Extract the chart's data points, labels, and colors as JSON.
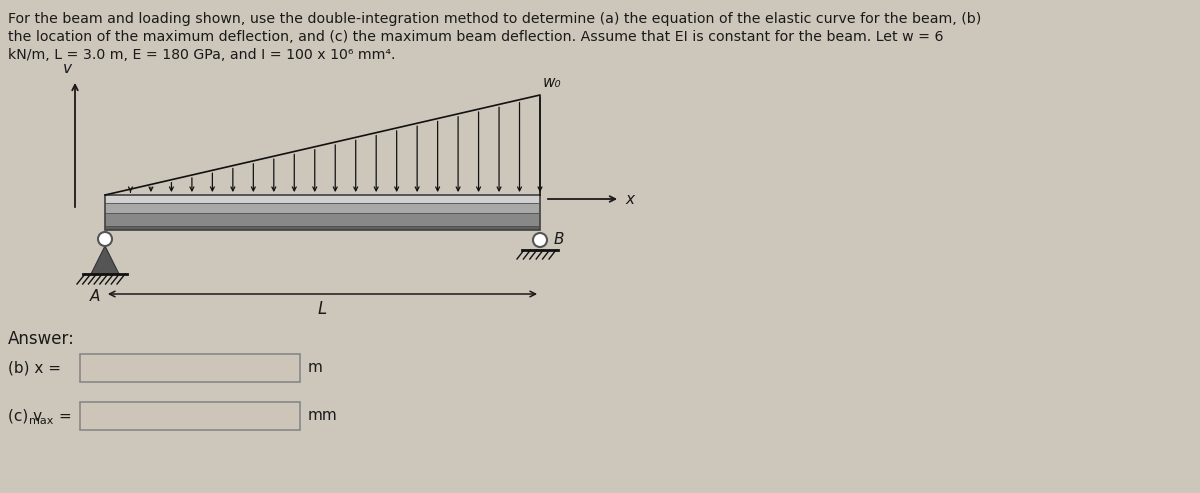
{
  "bg_color": "#cdc7bb",
  "text_color": "#1a1a1a",
  "title_line1": "For the beam and loading shown, use the double-integration method to determine (a) the equation of the elastic curve for the beam, (b)",
  "title_line2": "the location of the maximum deflection, and (c) the maximum beam deflection. Assume that EI is constant for the beam. Let w = 6",
  "title_line3": "kN/m, L = 3.0 m, E = 180 GPa, and I = 100 x 10⁶ mm⁴.",
  "answer_label": "Answer:",
  "b_label": "(b) x =",
  "b_unit": "m",
  "c_label": "(c) v",
  "c_sub": "max",
  "c_eq": "=",
  "c_unit": "mm",
  "v_label": "v",
  "x_label": "x",
  "wo_label": "w₀",
  "A_label": "A",
  "B_label": "B",
  "L_label": "L",
  "beam_color_top": "#b8b8b8",
  "beam_color_mid": "#909090",
  "beam_color_bot": "#6a6a6a",
  "beam_color_dark": "#484848",
  "pin_color": "#555555",
  "arrow_color": "#111111",
  "box_facecolor": "#cdc7bb",
  "box_edgecolor": "#888888"
}
